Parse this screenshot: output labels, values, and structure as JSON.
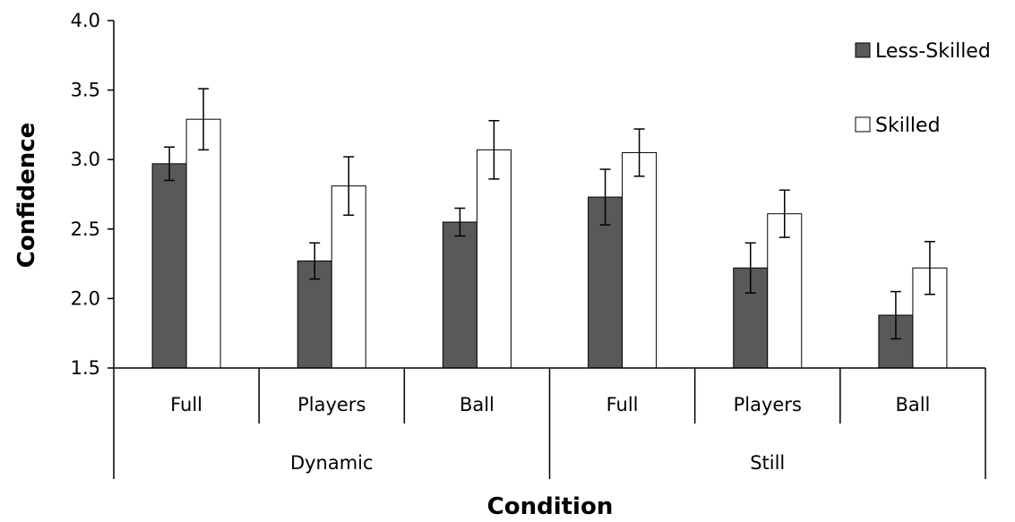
{
  "chart_data": {
    "type": "bar",
    "title": "",
    "xlabel": "Condition",
    "ylabel": "Confidence",
    "ylim": [
      1.5,
      4.0
    ],
    "yticks": [
      "1.5",
      "2.0",
      "2.5",
      "3.0",
      "3.5",
      "4.0"
    ],
    "categories": [
      "Full",
      "Players",
      "Ball",
      "Full",
      "Players",
      "Ball"
    ],
    "groups": [
      {
        "label": "Dynamic",
        "categories": [
          "Full",
          "Players",
          "Ball"
        ]
      },
      {
        "label": "Still",
        "categories": [
          "Full",
          "Players",
          "Ball"
        ]
      }
    ],
    "series": [
      {
        "name": "Less-Skilled",
        "color": "#595959",
        "values": [
          2.97,
          2.27,
          2.55,
          2.73,
          2.22,
          1.88
        ],
        "errors": [
          0.12,
          0.13,
          0.1,
          0.2,
          0.18,
          0.17
        ]
      },
      {
        "name": "Skilled",
        "color": "#ffffff",
        "values": [
          3.29,
          2.81,
          3.07,
          3.05,
          2.61,
          2.22
        ],
        "errors": [
          0.22,
          0.21,
          0.21,
          0.17,
          0.17,
          0.19
        ]
      }
    ],
    "grid": false,
    "legend_position": "top-right"
  }
}
